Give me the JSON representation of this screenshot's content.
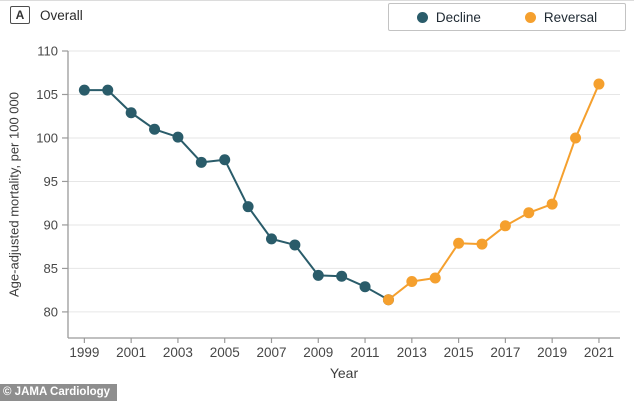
{
  "panel": {
    "label": "A",
    "title": "Overall"
  },
  "legend": {
    "items": [
      {
        "label": "Decline",
        "color": "#2a5c6a"
      },
      {
        "label": "Reversal",
        "color": "#f5a02e"
      }
    ]
  },
  "watermark": "© JAMA Cardiology",
  "chart_data": {
    "type": "line",
    "title": "Overall",
    "xlabel": "Year",
    "ylabel": "Age-adjusted mortality, per 100 000",
    "xlim": [
      1998.3,
      2021.9
    ],
    "ylim": [
      77,
      110
    ],
    "yticks": [
      80,
      85,
      90,
      95,
      100,
      105,
      110
    ],
    "xticks": [
      1999,
      2001,
      2003,
      2005,
      2007,
      2009,
      2011,
      2013,
      2015,
      2017,
      2019,
      2021
    ],
    "grid": "horizontal",
    "legend_position": "top-right",
    "series": [
      {
        "name": "Decline",
        "color": "#2a5c6a",
        "x": [
          1999,
          2000,
          2001,
          2002,
          2003,
          2004,
          2005,
          2006,
          2007,
          2008,
          2009,
          2010,
          2011,
          2012
        ],
        "values": [
          105.5,
          105.5,
          102.9,
          101.0,
          100.1,
          97.2,
          97.5,
          92.1,
          88.4,
          87.7,
          84.2,
          84.1,
          82.9,
          81.4
        ]
      },
      {
        "name": "Reversal",
        "color": "#f5a02e",
        "x": [
          2012,
          2013,
          2014,
          2015,
          2016,
          2017,
          2018,
          2019,
          2020,
          2021
        ],
        "values": [
          81.4,
          83.5,
          83.9,
          87.9,
          87.8,
          89.9,
          91.4,
          92.4,
          100.0,
          106.2
        ]
      }
    ]
  }
}
